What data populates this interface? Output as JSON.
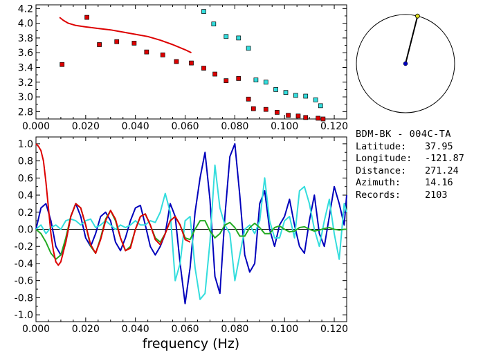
{
  "station": {
    "title": "BDM-BK - 004C-TA",
    "fields": [
      {
        "label": "Latitude:",
        "value": "37.95"
      },
      {
        "label": "Longitude:",
        "value": "-121.87"
      },
      {
        "label": "Distance:",
        "value": "271.24"
      },
      {
        "label": "Azimuth:",
        "value": "14.16"
      },
      {
        "label": "Records:",
        "value": "2103"
      }
    ],
    "azimuth_deg": 14.16
  },
  "colors": {
    "red": "#dd0000",
    "cyan": "#33dddd",
    "blue": "#0000bb",
    "green": "#22aa22",
    "axis": "#000000"
  },
  "chart_data": [
    {
      "type": "scatter",
      "xlim": [
        0.0,
        0.125
      ],
      "ylim": [
        2.7,
        4.25
      ],
      "xticks": [
        "0.000",
        "0.020",
        "0.040",
        "0.060",
        "0.080",
        "0.100",
        "0.120"
      ],
      "yticks": [
        "2.8",
        "3.0",
        "3.2",
        "3.4",
        "3.6",
        "3.8",
        "4.0",
        "4.2"
      ],
      "xtick_values": [
        0.0,
        0.02,
        0.04,
        0.06,
        0.08,
        0.1,
        0.12
      ],
      "ytick_values": [
        2.8,
        3.0,
        3.2,
        3.4,
        3.6,
        3.8,
        4.0,
        4.2
      ],
      "series": [
        {
          "kind": "points",
          "color": "red",
          "x": [
            0.0105,
            0.0205,
            0.0255,
            0.0325,
            0.0395,
            0.0445,
            0.051,
            0.0565,
            0.0625,
            0.0675,
            0.072,
            0.0765,
            0.0815,
            0.0855,
            0.0875,
            0.0925,
            0.097,
            0.1015,
            0.1055,
            0.1085,
            0.1135,
            0.1155
          ],
          "y": [
            3.44,
            4.08,
            3.71,
            3.75,
            3.73,
            3.61,
            3.57,
            3.48,
            3.46,
            3.39,
            3.31,
            3.22,
            3.25,
            2.97,
            2.84,
            2.83,
            2.79,
            2.75,
            2.74,
            2.72,
            2.71,
            2.7
          ]
        },
        {
          "kind": "points",
          "color": "cyan",
          "x": [
            0.0675,
            0.0715,
            0.0765,
            0.0815,
            0.0855,
            0.0885,
            0.0925,
            0.0965,
            0.1005,
            0.1045,
            0.1085,
            0.1125,
            0.1145
          ],
          "y": [
            4.16,
            3.99,
            3.82,
            3.8,
            3.66,
            3.23,
            3.2,
            3.1,
            3.06,
            3.02,
            3.01,
            2.96,
            2.88
          ]
        },
        {
          "kind": "line",
          "color": "red",
          "x": [
            0.0095,
            0.011,
            0.013,
            0.016,
            0.02,
            0.025,
            0.03,
            0.035,
            0.04,
            0.045,
            0.05,
            0.055,
            0.06,
            0.0625
          ],
          "y": [
            4.08,
            4.04,
            4.0,
            3.97,
            3.95,
            3.93,
            3.91,
            3.88,
            3.85,
            3.82,
            3.77,
            3.71,
            3.64,
            3.6
          ]
        }
      ]
    },
    {
      "type": "line",
      "xlim": [
        0.0,
        0.125
      ],
      "ylim": [
        -1.08,
        1.08
      ],
      "xticks": [
        "0.000",
        "0.020",
        "0.040",
        "0.060",
        "0.080",
        "0.100",
        "0.120"
      ],
      "yticks": [
        "1.0",
        "0.8",
        "0.6",
        "0.4",
        "0.2",
        "0.0",
        "-0.2",
        "-0.4",
        "-0.6",
        "-0.8",
        "-1.0"
      ],
      "xtick_values": [
        0.0,
        0.02,
        0.04,
        0.06,
        0.08,
        0.1,
        0.12
      ],
      "ytick_values": [
        1.0,
        0.8,
        0.6,
        0.4,
        0.2,
        0.0,
        -0.2,
        -0.4,
        -0.6,
        -0.8,
        -1.0
      ],
      "xlabel": "frequency (Hz)",
      "series": [
        {
          "color": "blue",
          "x": [
            0.0,
            0.002,
            0.004,
            0.006,
            0.008,
            0.01,
            0.012,
            0.014,
            0.016,
            0.018,
            0.02,
            0.022,
            0.024,
            0.026,
            0.028,
            0.03,
            0.032,
            0.034,
            0.036,
            0.038,
            0.04,
            0.042,
            0.044,
            0.046,
            0.048,
            0.05,
            0.052,
            0.054,
            0.056,
            0.058,
            0.06,
            0.062,
            0.064,
            0.066,
            0.068,
            0.07,
            0.072,
            0.074,
            0.076,
            0.078,
            0.08,
            0.082,
            0.084,
            0.086,
            0.088,
            0.09,
            0.092,
            0.094,
            0.096,
            0.098,
            0.1,
            0.102,
            0.104,
            0.106,
            0.108,
            0.11,
            0.112,
            0.114,
            0.116,
            0.118,
            0.12,
            0.122,
            0.124,
            0.125
          ],
          "y": [
            0.0,
            0.25,
            0.3,
            0.1,
            -0.2,
            -0.3,
            -0.15,
            0.15,
            0.3,
            0.15,
            -0.1,
            -0.2,
            -0.05,
            0.15,
            0.2,
            0.1,
            -0.15,
            -0.25,
            -0.1,
            0.1,
            0.25,
            0.28,
            0.05,
            -0.2,
            -0.3,
            -0.2,
            -0.05,
            0.3,
            0.15,
            -0.4,
            -0.87,
            -0.45,
            0.2,
            0.6,
            0.9,
            0.35,
            -0.55,
            -0.75,
            0.15,
            0.85,
            1.0,
            0.4,
            -0.3,
            -0.5,
            -0.4,
            0.3,
            0.45,
            0.0,
            -0.2,
            0.05,
            0.15,
            0.35,
            0.05,
            -0.2,
            -0.28,
            0.1,
            0.4,
            -0.05,
            -0.2,
            0.15,
            0.5,
            0.3,
            0.05,
            0.4
          ]
        },
        {
          "color": "cyan",
          "x": [
            0.0,
            0.002,
            0.004,
            0.006,
            0.008,
            0.01,
            0.012,
            0.014,
            0.016,
            0.018,
            0.02,
            0.022,
            0.024,
            0.026,
            0.028,
            0.03,
            0.032,
            0.034,
            0.036,
            0.038,
            0.04,
            0.042,
            0.044,
            0.046,
            0.048,
            0.05,
            0.052,
            0.054,
            0.056,
            0.058,
            0.06,
            0.062,
            0.064,
            0.066,
            0.068,
            0.07,
            0.072,
            0.074,
            0.076,
            0.078,
            0.08,
            0.082,
            0.084,
            0.086,
            0.088,
            0.09,
            0.092,
            0.094,
            0.096,
            0.098,
            0.1,
            0.102,
            0.104,
            0.106,
            0.108,
            0.11,
            0.112,
            0.114,
            0.116,
            0.118,
            0.12,
            0.122,
            0.124,
            0.125
          ],
          "y": [
            0.0,
            0.05,
            -0.05,
            0.02,
            0.05,
            0.0,
            0.1,
            0.12,
            0.1,
            0.05,
            0.1,
            0.12,
            0.02,
            0.05,
            0.1,
            0.05,
            0.0,
            0.05,
            0.02,
            0.05,
            0.1,
            0.05,
            0.05,
            0.1,
            0.08,
            0.2,
            0.42,
            0.2,
            -0.6,
            -0.4,
            0.1,
            0.15,
            -0.45,
            -0.82,
            -0.75,
            -0.15,
            0.75,
            0.25,
            0.05,
            -0.05,
            -0.6,
            -0.3,
            0.0,
            0.05,
            -0.05,
            0.1,
            0.6,
            0.1,
            -0.1,
            -0.1,
            0.1,
            0.15,
            -0.1,
            0.45,
            0.5,
            0.3,
            0.0,
            -0.2,
            0.1,
            0.35,
            -0.05,
            -0.35,
            0.3,
            0.2
          ]
        },
        {
          "color": "green",
          "x": [
            0.0,
            0.002,
            0.004,
            0.006,
            0.008,
            0.01,
            0.012,
            0.014,
            0.016,
            0.018,
            0.02,
            0.022,
            0.024,
            0.026,
            0.028,
            0.03,
            0.032,
            0.034,
            0.036,
            0.038,
            0.04,
            0.042,
            0.044,
            0.046,
            0.048,
            0.05,
            0.052,
            0.054,
            0.056,
            0.058,
            0.06,
            0.062,
            0.064,
            0.066,
            0.068,
            0.07,
            0.072,
            0.074,
            0.076,
            0.078,
            0.08,
            0.082,
            0.084,
            0.086,
            0.088,
            0.09,
            0.092,
            0.094,
            0.096,
            0.098,
            0.1,
            0.102,
            0.104,
            0.106,
            0.108,
            0.11,
            0.112,
            0.114,
            0.116,
            0.118,
            0.12,
            0.122,
            0.124,
            0.125
          ],
          "y": [
            0.0,
            -0.05,
            -0.15,
            -0.28,
            -0.35,
            -0.3,
            -0.1,
            0.15,
            0.3,
            0.25,
            0.05,
            -0.2,
            -0.28,
            -0.1,
            0.12,
            0.22,
            0.1,
            -0.1,
            -0.25,
            -0.2,
            0.0,
            0.15,
            0.18,
            0.05,
            -0.1,
            -0.15,
            -0.05,
            0.1,
            0.15,
            0.05,
            -0.1,
            -0.12,
            0.0,
            0.1,
            0.1,
            -0.02,
            -0.1,
            -0.05,
            0.05,
            0.08,
            0.02,
            -0.08,
            -0.08,
            0.02,
            0.07,
            0.02,
            -0.05,
            -0.05,
            0.02,
            0.04,
            0.0,
            -0.03,
            -0.02,
            0.02,
            0.03,
            0.0,
            -0.02,
            -0.01,
            0.01,
            0.02,
            0.0,
            -0.01,
            0.0,
            0.0
          ]
        },
        {
          "color": "red",
          "x": [
            0.0,
            0.001,
            0.002,
            0.003,
            0.004,
            0.005,
            0.006,
            0.007,
            0.008,
            0.009,
            0.01,
            0.012,
            0.014,
            0.016,
            0.018,
            0.02,
            0.022,
            0.024,
            0.026,
            0.028,
            0.03,
            0.032,
            0.034,
            0.036,
            0.038,
            0.04,
            0.042,
            0.044,
            0.046,
            0.048,
            0.05,
            0.052,
            0.054,
            0.056,
            0.058,
            0.06,
            0.062
          ],
          "y": [
            1.0,
            0.97,
            0.92,
            0.8,
            0.55,
            0.25,
            -0.05,
            -0.25,
            -0.38,
            -0.42,
            -0.38,
            -0.15,
            0.15,
            0.3,
            0.25,
            0.05,
            -0.18,
            -0.28,
            -0.12,
            0.1,
            0.22,
            0.12,
            -0.1,
            -0.25,
            -0.22,
            0.0,
            0.15,
            0.18,
            0.05,
            -0.12,
            -0.18,
            -0.05,
            0.1,
            0.15,
            0.05,
            -0.12,
            -0.15
          ]
        }
      ]
    }
  ]
}
